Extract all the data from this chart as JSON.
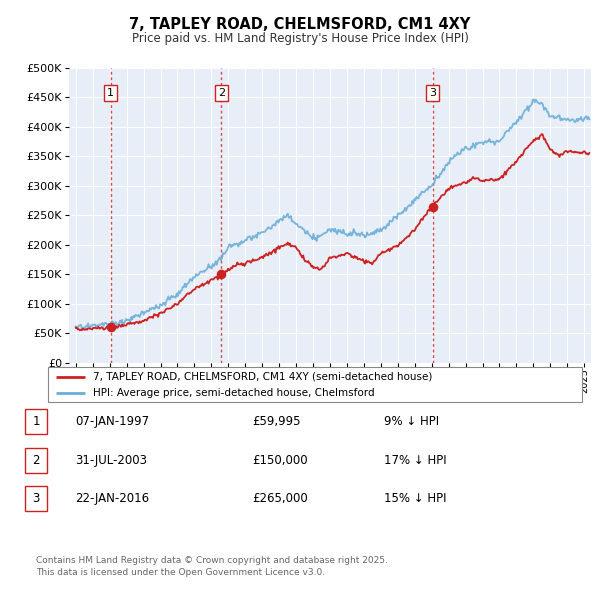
{
  "title": "7, TAPLEY ROAD, CHELMSFORD, CM1 4XY",
  "subtitle": "Price paid vs. HM Land Registry's House Price Index (HPI)",
  "hpi_color": "#6baed6",
  "price_color": "#cc2222",
  "vline_color": "#cc2222",
  "plot_bg": "#e8eef8",
  "legend_label_price": "7, TAPLEY ROAD, CHELMSFORD, CM1 4XY (semi-detached house)",
  "legend_label_hpi": "HPI: Average price, semi-detached house, Chelmsford",
  "transactions": [
    {
      "num": 1,
      "date": "07-JAN-1997",
      "price": 59995,
      "pct": "9%",
      "dir": "↓",
      "x_year": 1997.05
    },
    {
      "num": 2,
      "date": "31-JUL-2003",
      "price": 150000,
      "pct": "17%",
      "dir": "↓",
      "x_year": 2003.58
    },
    {
      "num": 3,
      "date": "22-JAN-2016",
      "price": 265000,
      "pct": "15%",
      "dir": "↓",
      "x_year": 2016.06
    }
  ],
  "footer": "Contains HM Land Registry data © Crown copyright and database right 2025.\nThis data is licensed under the Open Government Licence v3.0.",
  "ylim": [
    0,
    500000
  ],
  "xlim": [
    1994.6,
    2025.4
  ],
  "yticks": [
    0,
    50000,
    100000,
    150000,
    200000,
    250000,
    300000,
    350000,
    400000,
    450000,
    500000
  ]
}
